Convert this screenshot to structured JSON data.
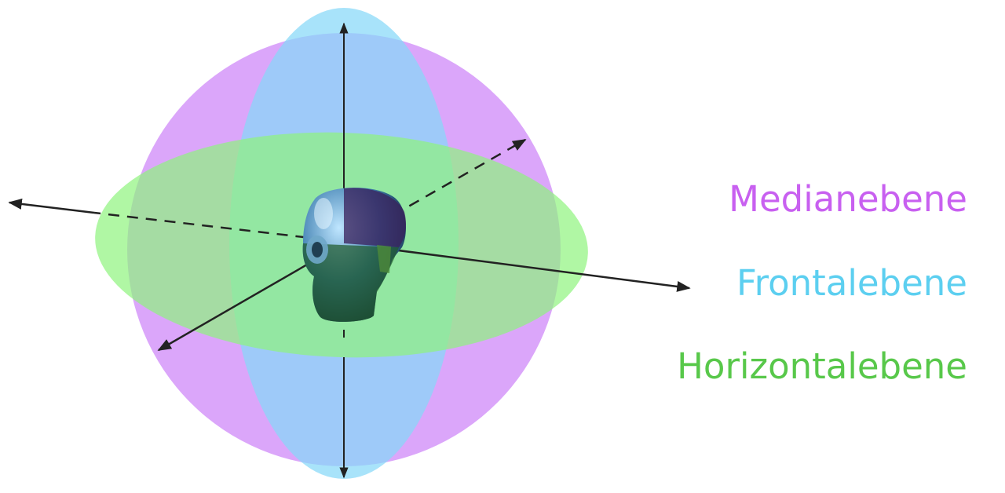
{
  "legend": {
    "median": {
      "label": "Medianebene",
      "color": "#c860f0"
    },
    "frontal": {
      "label": "Frontalebene",
      "color": "#5ccff0"
    },
    "horizontal": {
      "label": "Horizontalebene",
      "color": "#58c84a"
    }
  },
  "planes": {
    "median_fill": "#d79cfa",
    "frontal_fill": "#86d8f8",
    "horizontal_fill": "#8ef47e"
  },
  "axis_color": "#222222",
  "icons": {
    "head": "dummy-head-icon"
  }
}
